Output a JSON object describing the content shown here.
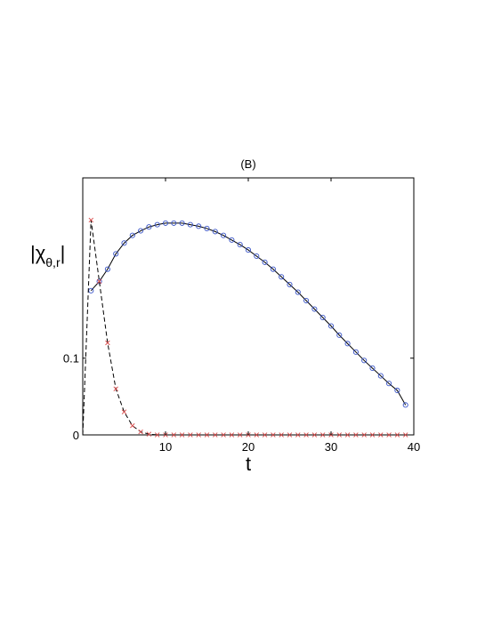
{
  "chart_data": {
    "type": "line",
    "title": "(B)",
    "xlabel": "t",
    "ylabel": {
      "base": "|χ",
      "subscript": "θ,r",
      "suffix": "|"
    },
    "xlim": [
      0,
      40
    ],
    "ylim": [
      0,
      0.335
    ],
    "xticks": [
      10,
      20,
      30,
      40
    ],
    "yticks": [
      0,
      0.1
    ],
    "ytick_labels": [
      "0",
      "0.1"
    ],
    "grid": false,
    "series": [
      {
        "key": "model",
        "style": "solid",
        "color": "#000000",
        "x": [
          1,
          2,
          3,
          4,
          5,
          6,
          7,
          8,
          9,
          10,
          11,
          12,
          13,
          14,
          15,
          16,
          17,
          18,
          19,
          20,
          21,
          22,
          23,
          24,
          25,
          26,
          27,
          28,
          29,
          30,
          31,
          32,
          33,
          34,
          35,
          36,
          37,
          38,
          39
        ],
        "y": [
          0.188,
          0.2,
          0.216,
          0.236,
          0.25,
          0.26,
          0.266,
          0.271,
          0.274,
          0.276,
          0.276,
          0.276,
          0.274,
          0.272,
          0.269,
          0.265,
          0.26,
          0.254,
          0.248,
          0.241,
          0.233,
          0.225,
          0.216,
          0.206,
          0.196,
          0.186,
          0.175,
          0.164,
          0.153,
          0.142,
          0.13,
          0.119,
          0.108,
          0.097,
          0.087,
          0.077,
          0.067,
          0.058,
          0.039
        ]
      },
      {
        "key": "model-markers",
        "style": "markers-circle",
        "color": "#3a55c8",
        "x": [
          1,
          2,
          3,
          4,
          5,
          6,
          7,
          8,
          9,
          10,
          11,
          12,
          13,
          14,
          15,
          16,
          17,
          18,
          19,
          20,
          21,
          22,
          23,
          24,
          25,
          26,
          27,
          28,
          29,
          30,
          31,
          32,
          33,
          34,
          35,
          36,
          37,
          38,
          39
        ],
        "y": [
          0.188,
          0.2,
          0.216,
          0.236,
          0.25,
          0.26,
          0.266,
          0.271,
          0.274,
          0.276,
          0.276,
          0.276,
          0.274,
          0.272,
          0.269,
          0.265,
          0.26,
          0.254,
          0.248,
          0.241,
          0.233,
          0.225,
          0.216,
          0.206,
          0.196,
          0.186,
          0.175,
          0.164,
          0.153,
          0.142,
          0.13,
          0.119,
          0.108,
          0.097,
          0.087,
          0.077,
          0.067,
          0.058,
          0.039
        ]
      },
      {
        "key": "other",
        "style": "dashed",
        "color": "#000000",
        "x": [
          0,
          1,
          2,
          3,
          4,
          5,
          6,
          7,
          8,
          9,
          10,
          11,
          12,
          13,
          14,
          15,
          16,
          17,
          18,
          19,
          20,
          21,
          22,
          23,
          24,
          25,
          26,
          27,
          28,
          29,
          30,
          31,
          32,
          33,
          34,
          35,
          36,
          37,
          38,
          39,
          40
        ],
        "y": [
          0.0,
          0.28,
          0.2,
          0.12,
          0.06,
          0.03,
          0.012,
          0.004,
          0.001,
          0.0,
          0.0,
          0.0,
          0.0,
          0.0,
          0.0,
          0.0,
          0.0,
          0.0,
          0.0,
          0.0,
          0.0,
          0.0,
          0.0,
          0.0,
          0.0,
          0.0,
          0.0,
          0.0,
          0.0,
          0.0,
          0.0,
          0.0,
          0.0,
          0.0,
          0.0,
          0.0,
          0.0,
          0.0,
          0.0,
          0.0,
          0.0
        ]
      },
      {
        "key": "other-markers",
        "style": "markers-x",
        "color": "#d84a4a",
        "x": [
          1,
          2,
          3,
          4,
          5,
          6,
          7,
          8,
          9,
          10,
          11,
          12,
          13,
          14,
          15,
          16,
          17,
          18,
          19,
          20,
          21,
          22,
          23,
          24,
          25,
          26,
          27,
          28,
          29,
          30,
          31,
          32,
          33,
          34,
          35,
          36,
          37,
          38,
          39
        ],
        "y": [
          0.28,
          0.2,
          0.12,
          0.06,
          0.03,
          0.012,
          0.004,
          0.001,
          0.0,
          0.0,
          0.0,
          0.0,
          0.0,
          0.0,
          0.0,
          0.0,
          0.0,
          0.0,
          0.0,
          0.0,
          0.0,
          0.0,
          0.0,
          0.0,
          0.0,
          0.0,
          0.0,
          0.0,
          0.0,
          0.0,
          0.0,
          0.0,
          0.0,
          0.0,
          0.0,
          0.0,
          0.0,
          0.0,
          0.0
        ]
      }
    ]
  }
}
